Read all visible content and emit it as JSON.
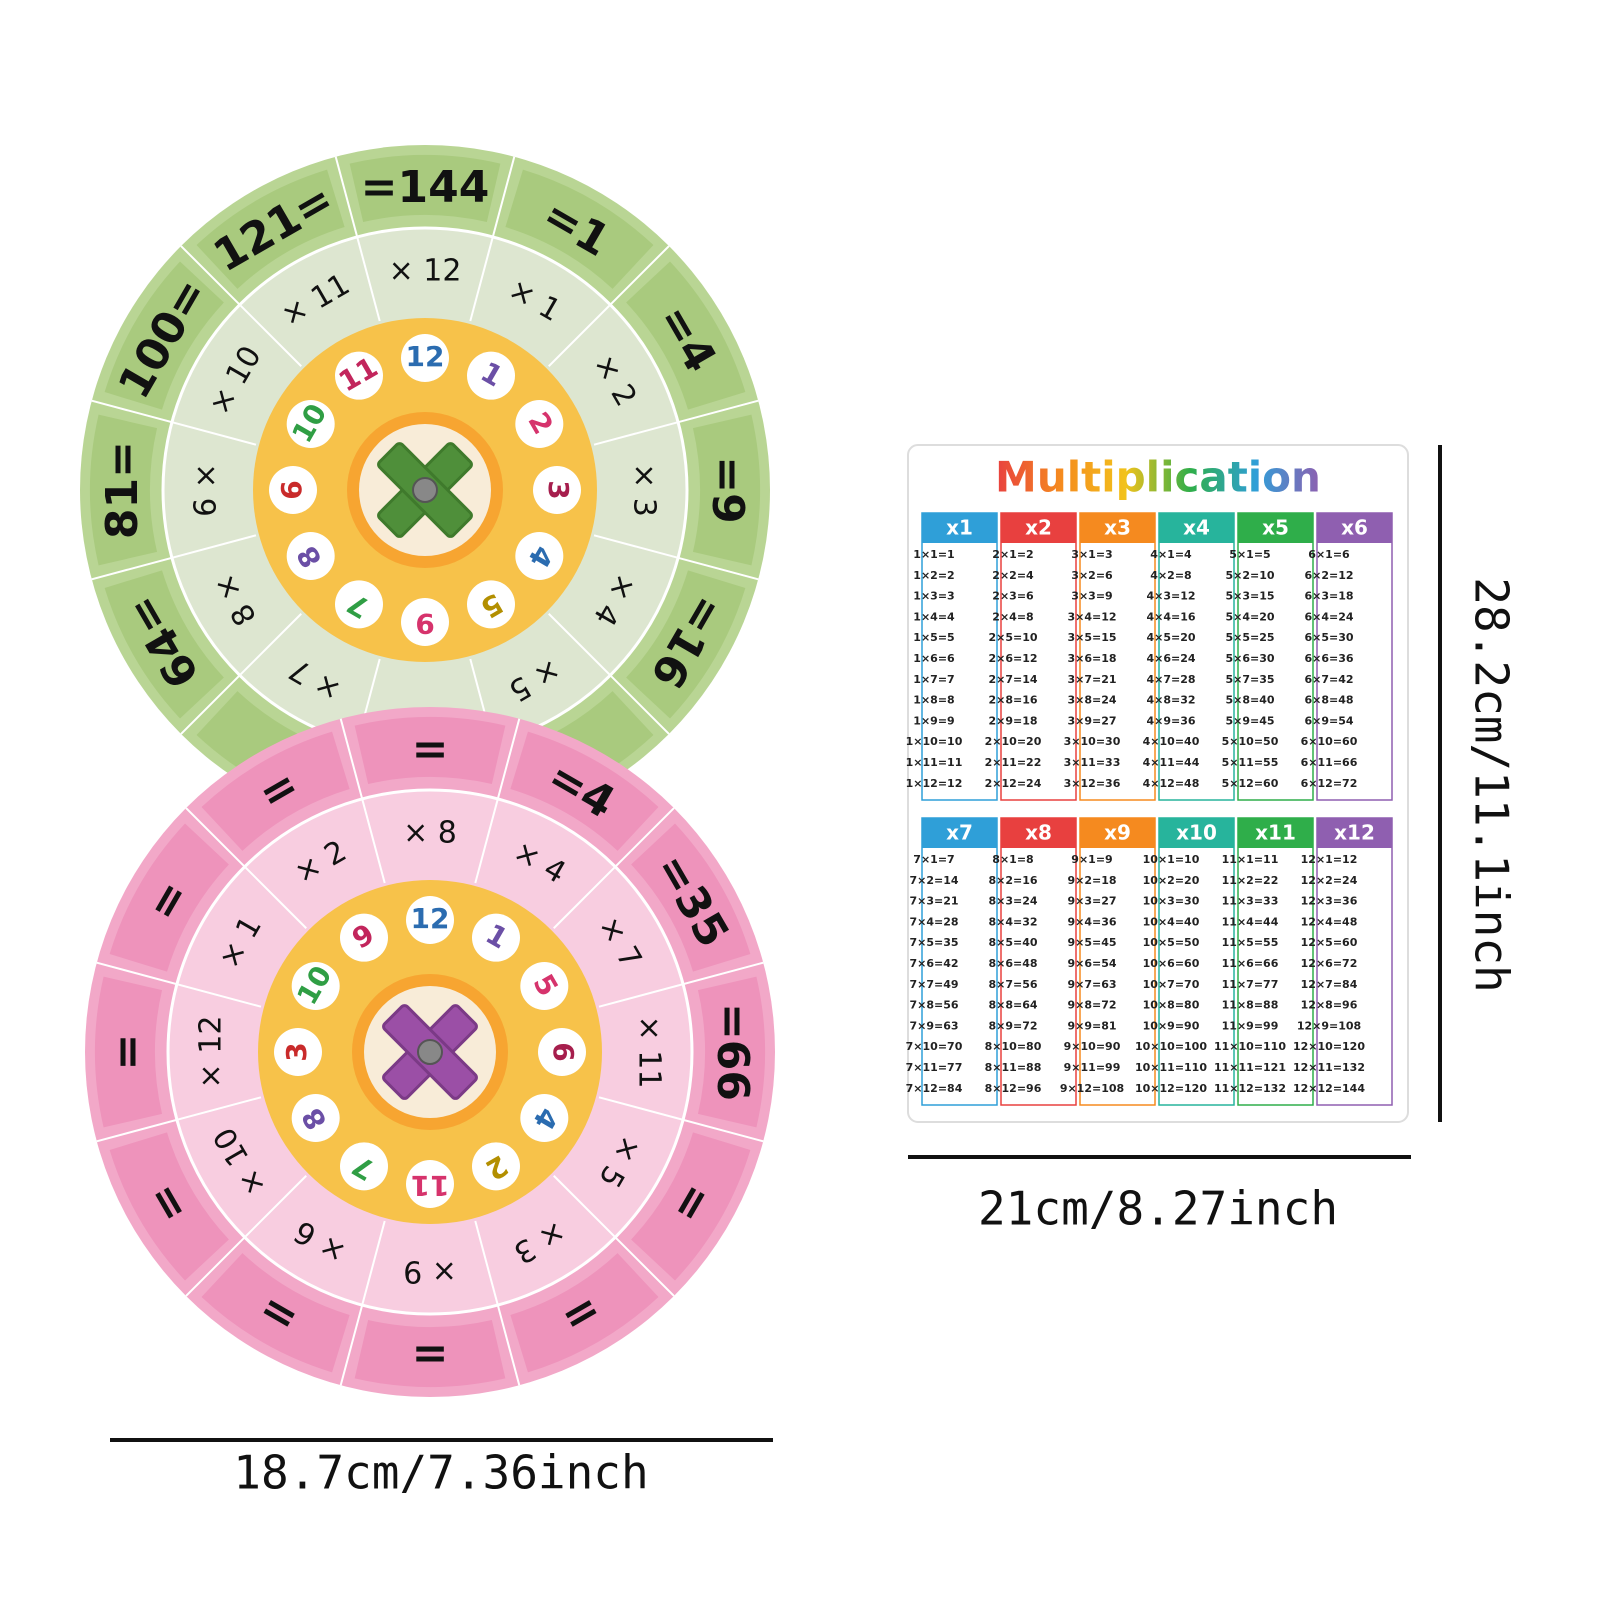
{
  "wheels": [
    {
      "outer": [
        "=144",
        "=1",
        "=4",
        "=9",
        "=16",
        null,
        null,
        null,
        "64=",
        "81=",
        "100=",
        "121="
      ],
      "middle": [
        "× 12",
        "× 1",
        "× 2",
        "× 3",
        "× 4",
        "× 5",
        null,
        "× 7",
        "8 ×",
        "6 ×",
        "× 10",
        "× 11"
      ],
      "inner": [
        12,
        1,
        2,
        3,
        4,
        5,
        9,
        7,
        8,
        6,
        10,
        11
      ]
    },
    {
      "outer": [
        "=",
        "=4",
        "=35",
        "=66",
        "=",
        "=",
        "=",
        "=",
        "=",
        "=",
        "=",
        "="
      ],
      "middle": [
        "× 8",
        "× 4",
        "× 7",
        "× 11",
        "× 5",
        "× 3",
        "× 9",
        "× 6",
        "× 10",
        "× 12",
        "× 1",
        "× 2"
      ],
      "inner": [
        12,
        1,
        5,
        6,
        4,
        2,
        11,
        7,
        8,
        3,
        10,
        9
      ]
    }
  ],
  "table": {
    "title": "Multiplication",
    "columns": [
      {
        "header": "x1",
        "rows": [
          "1×1=1",
          "1×2=2",
          "1×3=3",
          "1×4=4",
          "1×5=5",
          "1×6=6",
          "1×7=7",
          "1×8=8",
          "1×9=9",
          "1×10=10",
          "1×11=11",
          "1×12=12"
        ]
      },
      {
        "header": "x2",
        "rows": [
          "2×1=2",
          "2×2=4",
          "2×3=6",
          "2×4=8",
          "2×5=10",
          "2×6=12",
          "2×7=14",
          "2×8=16",
          "2×9=18",
          "2×10=20",
          "2×11=22",
          "2×12=24"
        ]
      },
      {
        "header": "x3",
        "rows": [
          "3×1=3",
          "3×2=6",
          "3×3=9",
          "3×4=12",
          "3×5=15",
          "3×6=18",
          "3×7=21",
          "3×8=24",
          "3×9=27",
          "3×10=30",
          "3×11=33",
          "3×12=36"
        ]
      },
      {
        "header": "x4",
        "rows": [
          "4×1=4",
          "4×2=8",
          "4×3=12",
          "4×4=16",
          "4×5=20",
          "4×6=24",
          "4×7=28",
          "4×8=32",
          "4×9=36",
          "4×10=40",
          "4×11=44",
          "4×12=48"
        ]
      },
      {
        "header": "x5",
        "rows": [
          "5×1=5",
          "5×2=10",
          "5×3=15",
          "5×4=20",
          "5×5=25",
          "5×6=30",
          "5×7=35",
          "5×8=40",
          "5×9=45",
          "5×10=50",
          "5×11=55",
          "5×12=60"
        ]
      },
      {
        "header": "x6",
        "rows": [
          "6×1=6",
          "6×2=12",
          "6×3=18",
          "6×4=24",
          "6×5=30",
          "6×6=36",
          "6×7=42",
          "6×8=48",
          "6×9=54",
          "6×10=60",
          "6×11=66",
          "6×12=72"
        ]
      },
      {
        "header": "x7",
        "rows": [
          "7×1=7",
          "7×2=14",
          "7×3=21",
          "7×4=28",
          "7×5=35",
          "7×6=42",
          "7×7=49",
          "7×8=56",
          "7×9=63",
          "7×10=70",
          "7×11=77",
          "7×12=84"
        ]
      },
      {
        "header": "x8",
        "rows": [
          "8×1=8",
          "8×2=16",
          "8×3=24",
          "8×4=32",
          "8×5=40",
          "8×6=48",
          "8×7=56",
          "8×8=64",
          "8×9=72",
          "8×10=80",
          "8×11=88",
          "8×12=96"
        ]
      },
      {
        "header": "x9",
        "rows": [
          "9×1=9",
          "9×2=18",
          "9×3=27",
          "9×4=36",
          "9×5=45",
          "9×6=54",
          "9×7=63",
          "9×8=72",
          "9×9=81",
          "9×10=90",
          "9×11=99",
          "9×12=108"
        ]
      },
      {
        "header": "x10",
        "rows": [
          "10×1=10",
          "10×2=20",
          "10×3=30",
          "10×4=40",
          "10×5=50",
          "10×6=60",
          "10×7=70",
          "10×8=80",
          "10×9=90",
          "10×10=100",
          "10×11=110",
          "10×12=120"
        ]
      },
      {
        "header": "x11",
        "rows": [
          "11×1=11",
          "11×2=22",
          "11×3=33",
          "11×4=44",
          "11×5=55",
          "11×6=66",
          "11×7=77",
          "11×8=88",
          "11×9=99",
          "11×10=110",
          "11×11=121",
          "11×12=132"
        ]
      },
      {
        "header": "x12",
        "rows": [
          "12×1=12",
          "12×2=24",
          "12×3=36",
          "12×4=48",
          "12×5=60",
          "12×6=72",
          "12×7=84",
          "12×8=96",
          "12×9=108",
          "12×10=120",
          "12×11=132",
          "12×12=144"
        ]
      }
    ]
  },
  "dimensions": {
    "wheel_width": "18.7cm/7.36inch",
    "table_height": "28.2cm/11.1inch",
    "table_width": "21cm/8.27inch"
  }
}
